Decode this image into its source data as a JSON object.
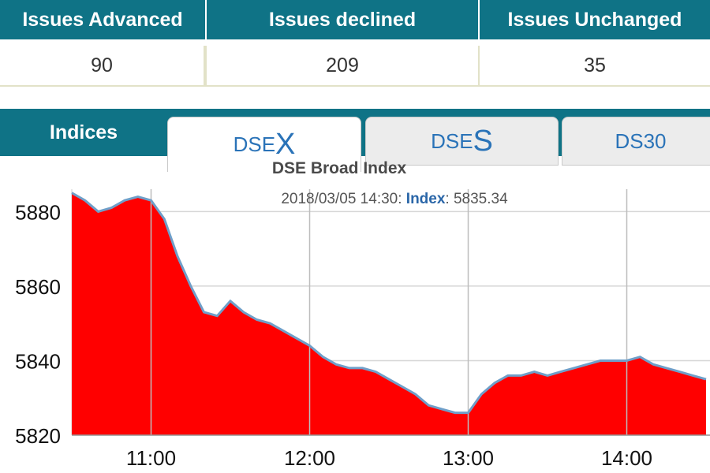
{
  "stats": {
    "headers": [
      "Issues Advanced",
      "Issues declined",
      "Issues Unchanged"
    ],
    "values": [
      "90",
      "209",
      "35"
    ]
  },
  "tabs": {
    "indices_label": "Indices",
    "items": [
      {
        "prefix": "DSE",
        "suffix": "X",
        "active": true
      },
      {
        "prefix": "DSE",
        "suffix": "S",
        "active": false
      },
      {
        "label": "DS30",
        "active": false
      }
    ]
  },
  "chart": {
    "title": "DSE Broad Index",
    "tooltip": {
      "timestamp": "2018/03/05 14:30",
      "key": "Index",
      "value": "5835.34"
    }
  },
  "colors": {
    "header_bg": "#0f7386",
    "fill": "#ff0000",
    "line": "#6f9fc9",
    "tab_text": "#2a73b8"
  },
  "chart_data": {
    "type": "area",
    "title": "DSE Broad Index",
    "xlabel": "",
    "ylabel": "",
    "x_ticks": [
      "11:00",
      "12:00",
      "13:00",
      "14:00"
    ],
    "y_ticks": [
      "5820",
      "5840",
      "5860",
      "5880"
    ],
    "ylim": [
      5820,
      5886
    ],
    "grid": true,
    "series": [
      {
        "x": [
          "10:30",
          "10:35",
          "10:40",
          "10:45",
          "10:50",
          "10:55",
          "11:00",
          "11:05",
          "11:10",
          "11:15",
          "11:20",
          "11:25",
          "11:30",
          "11:35",
          "11:40",
          "11:45",
          "11:50",
          "11:55",
          "12:00",
          "12:05",
          "12:10",
          "12:15",
          "12:20",
          "12:25",
          "12:30",
          "12:35",
          "12:40",
          "12:45",
          "12:50",
          "12:55",
          "13:00",
          "13:05",
          "13:10",
          "13:15",
          "13:20",
          "13:25",
          "13:30",
          "13:35",
          "13:40",
          "13:45",
          "13:50",
          "13:55",
          "14:00",
          "14:05",
          "14:10",
          "14:15",
          "14:20",
          "14:25",
          "14:30"
        ],
        "values": [
          5885,
          5883,
          5880,
          5881,
          5883,
          5884,
          5883,
          5878,
          5868,
          5860,
          5853,
          5852,
          5856,
          5853,
          5851,
          5850,
          5848,
          5846,
          5844,
          5841,
          5839,
          5838,
          5838,
          5837,
          5835,
          5833,
          5831,
          5828,
          5827,
          5826,
          5826,
          5831,
          5834,
          5836,
          5836,
          5837,
          5836,
          5837,
          5838,
          5839,
          5840,
          5840,
          5840,
          5841,
          5839,
          5838,
          5837,
          5836,
          5835
        ]
      }
    ]
  }
}
